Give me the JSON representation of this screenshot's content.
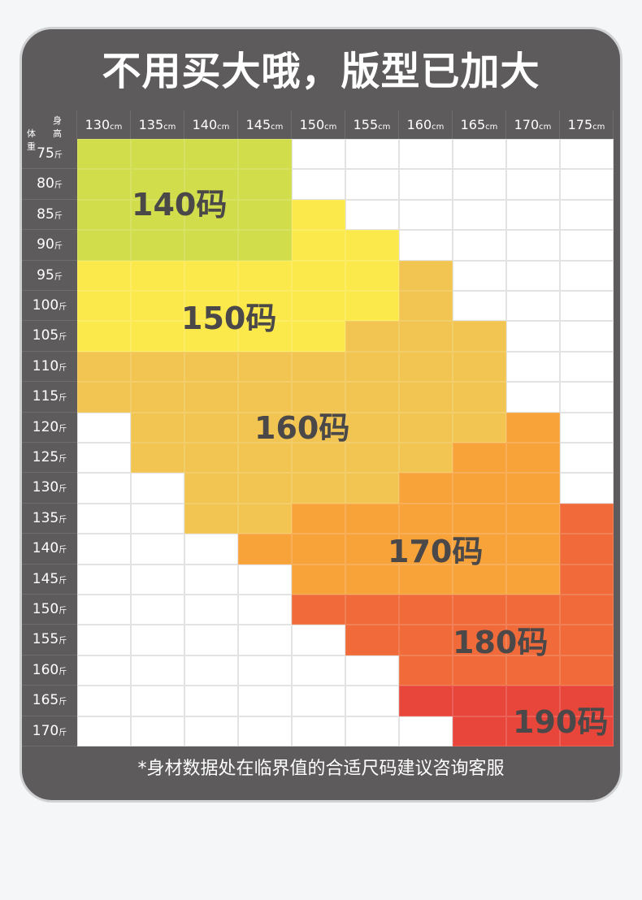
{
  "title": "不用买大哦，版型已加大",
  "corner": {
    "height_label": "身高",
    "weight_label": "体重"
  },
  "heights": [
    "130",
    "135",
    "140",
    "145",
    "150",
    "155",
    "160",
    "165",
    "170",
    "175"
  ],
  "height_unit": "cm",
  "weights": [
    "75",
    "80",
    "85",
    "90",
    "95",
    "100",
    "105",
    "110",
    "115",
    "120",
    "125",
    "130",
    "135",
    "140",
    "145",
    "150",
    "155",
    "160",
    "165",
    "170"
  ],
  "weight_unit": "斤",
  "zone_colors": {
    "140": "#d1dd4a",
    "150": "#fbe84b",
    "160": "#f2c552",
    "170": "#f8a23a",
    "180": "#f06a3a",
    "190": "#e8463b",
    "none": "#ffffff"
  },
  "zone_labels": {
    "140": "140码",
    "150": "150码",
    "160": "160码",
    "170": "170码",
    "180": "180码",
    "190": "190码"
  },
  "grid": [
    [
      "140",
      "140",
      "140",
      "140",
      "none",
      "none",
      "none",
      "none",
      "none",
      "none"
    ],
    [
      "140",
      "140",
      "140",
      "140",
      "none",
      "none",
      "none",
      "none",
      "none",
      "none"
    ],
    [
      "140",
      "140",
      "140",
      "140",
      "150",
      "none",
      "none",
      "none",
      "none",
      "none"
    ],
    [
      "140",
      "140",
      "140",
      "140",
      "150",
      "150",
      "none",
      "none",
      "none",
      "none"
    ],
    [
      "150",
      "150",
      "150",
      "150",
      "150",
      "150",
      "160",
      "none",
      "none",
      "none"
    ],
    [
      "150",
      "150",
      "150",
      "150",
      "150",
      "150",
      "160",
      "none",
      "none",
      "none"
    ],
    [
      "150",
      "150",
      "150",
      "150",
      "150",
      "160",
      "160",
      "160",
      "none",
      "none"
    ],
    [
      "160",
      "160",
      "160",
      "160",
      "160",
      "160",
      "160",
      "160",
      "none",
      "none"
    ],
    [
      "160",
      "160",
      "160",
      "160",
      "160",
      "160",
      "160",
      "160",
      "none",
      "none"
    ],
    [
      "none",
      "160",
      "160",
      "160",
      "160",
      "160",
      "160",
      "160",
      "170",
      "none"
    ],
    [
      "none",
      "160",
      "160",
      "160",
      "160",
      "160",
      "160",
      "170",
      "170",
      "none"
    ],
    [
      "none",
      "none",
      "160",
      "160",
      "160",
      "160",
      "170",
      "170",
      "170",
      "none"
    ],
    [
      "none",
      "none",
      "160",
      "160",
      "170",
      "170",
      "170",
      "170",
      "170",
      "180"
    ],
    [
      "none",
      "none",
      "none",
      "170",
      "170",
      "170",
      "170",
      "170",
      "170",
      "180"
    ],
    [
      "none",
      "none",
      "none",
      "none",
      "170",
      "170",
      "170",
      "170",
      "170",
      "180"
    ],
    [
      "none",
      "none",
      "none",
      "none",
      "180",
      "180",
      "180",
      "180",
      "180",
      "180"
    ],
    [
      "none",
      "none",
      "none",
      "none",
      "none",
      "180",
      "180",
      "180",
      "180",
      "180"
    ],
    [
      "none",
      "none",
      "none",
      "none",
      "none",
      "none",
      "180",
      "180",
      "180",
      "180"
    ],
    [
      "none",
      "none",
      "none",
      "none",
      "none",
      "none",
      "190",
      "190",
      "190",
      "190"
    ],
    [
      "none",
      "none",
      "none",
      "none",
      "none",
      "none",
      "none",
      "190",
      "190",
      "190"
    ]
  ],
  "footer_note": "*身材数据处在临界值的合适尺码建议咨询客服"
}
